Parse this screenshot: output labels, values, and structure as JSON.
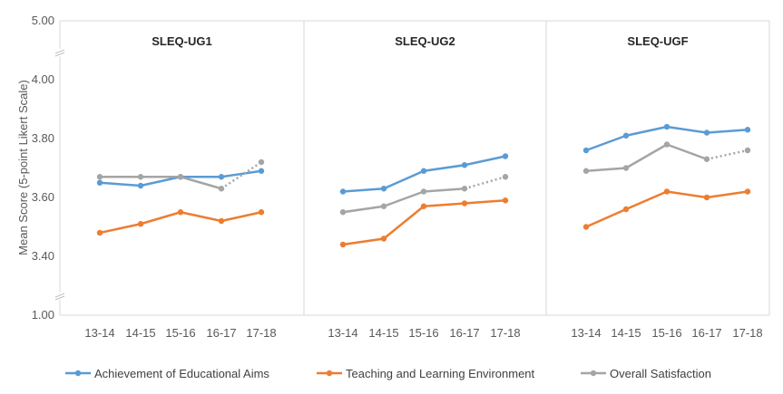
{
  "chart_data": {
    "type": "line",
    "ylabel": "Mean Score (5-point Likert Scale)",
    "y_ticks": [
      "1.00",
      "3.40",
      "3.60",
      "3.80",
      "4.00",
      "5.00"
    ],
    "y_scale": "broken axis: 1.00 to 3.40 and 4.00 to 5.00 compressed; 3.40 to 4.00 linear",
    "categories": [
      "13-14",
      "14-15",
      "15-16",
      "16-17",
      "17-18"
    ],
    "panels": [
      {
        "title": "SLEQ-UG1",
        "series": [
          {
            "name": "Achievement of Educational Aims",
            "values": [
              3.65,
              3.64,
              3.67,
              3.67,
              3.69
            ]
          },
          {
            "name": "Teaching and Learning Environment",
            "values": [
              3.48,
              3.51,
              3.55,
              3.52,
              3.55
            ]
          },
          {
            "name": "Overall Satisfaction",
            "values": [
              3.67,
              3.67,
              3.67,
              3.63,
              3.72
            ]
          }
        ]
      },
      {
        "title": "SLEQ-UG2",
        "series": [
          {
            "name": "Achievement of Educational Aims",
            "values": [
              3.62,
              3.63,
              3.69,
              3.71,
              3.74
            ]
          },
          {
            "name": "Teaching and Learning Environment",
            "values": [
              3.44,
              3.46,
              3.57,
              3.58,
              3.59
            ]
          },
          {
            "name": "Overall Satisfaction",
            "values": [
              3.55,
              3.57,
              3.62,
              3.63,
              3.67
            ]
          }
        ]
      },
      {
        "title": "SLEQ-UGF",
        "series": [
          {
            "name": "Achievement of Educational Aims",
            "values": [
              3.76,
              3.81,
              3.84,
              3.82,
              3.83
            ]
          },
          {
            "name": "Teaching and Learning Environment",
            "values": [
              3.5,
              3.56,
              3.62,
              3.6,
              3.62
            ]
          },
          {
            "name": "Overall Satisfaction",
            "values": [
              3.69,
              3.7,
              3.78,
              3.73,
              3.76
            ]
          }
        ]
      }
    ],
    "colors": {
      "Achievement of Educational Aims": "#5B9BD5",
      "Teaching and Learning Environment": "#ED7D31",
      "Overall Satisfaction": "#A5A5A5"
    },
    "dotted_last_segment": "Overall Satisfaction (16-17 to 17-18)",
    "legend_position": "bottom",
    "grid": false
  }
}
